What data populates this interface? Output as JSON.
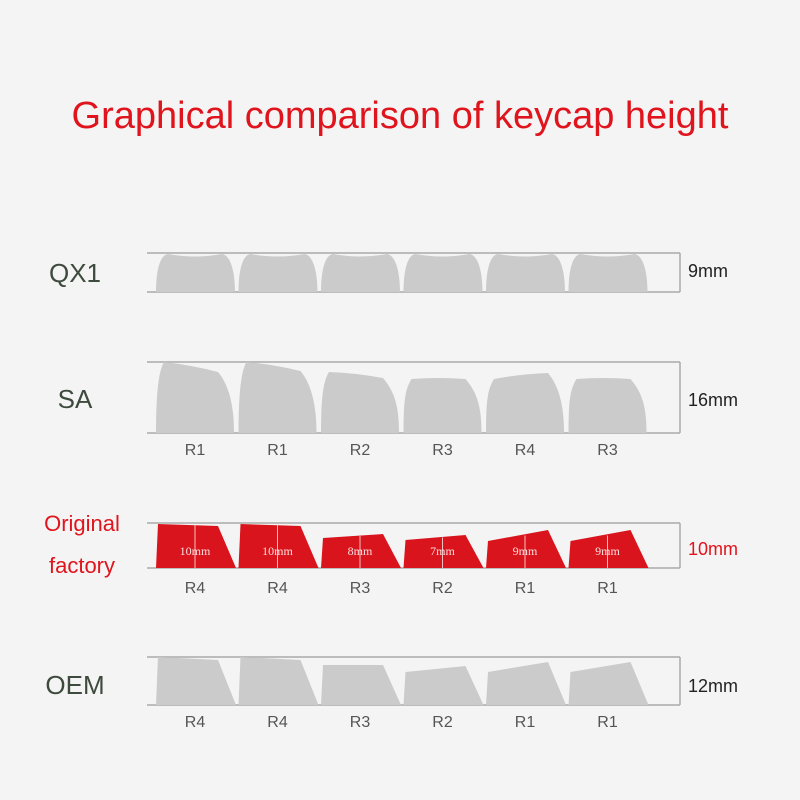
{
  "title": "Graphical comparison of keycap height",
  "colors": {
    "title": "#e0141c",
    "keycap_gray": "#cbcbcb",
    "keycap_red": "#d9141c",
    "line": "#aaaaaa"
  },
  "rows": [
    {
      "name": "QX1",
      "height": "9mm",
      "row_labels": []
    },
    {
      "name": "SA",
      "height": "16mm",
      "row_labels": [
        "R1",
        "R1",
        "R2",
        "R3",
        "R4",
        "R3"
      ]
    },
    {
      "name_line1": "Original",
      "name_line2": "factory",
      "height": "10mm",
      "row_labels": [
        "R4",
        "R4",
        "R3",
        "R2",
        "R1",
        "R1"
      ],
      "cap_heights": [
        "10mm",
        "10mm",
        "8mm",
        "7mm",
        "9mm",
        "9mm"
      ]
    },
    {
      "name": "OEM",
      "height": "12mm",
      "row_labels": [
        "R4",
        "R4",
        "R3",
        "R2",
        "R1",
        "R1"
      ]
    }
  ]
}
